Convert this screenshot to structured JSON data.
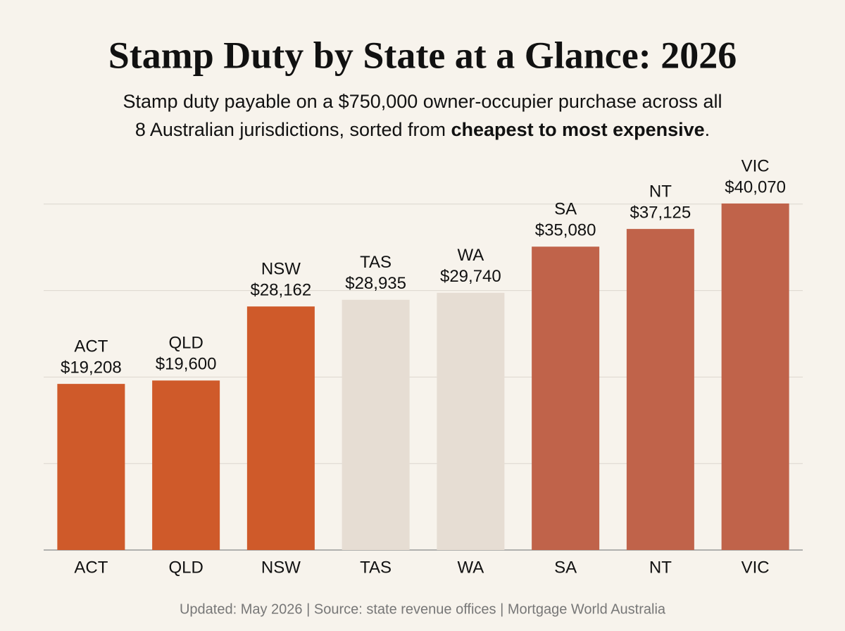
{
  "chart_data": {
    "type": "bar",
    "title": "Stamp Duty by State at a Glance: 2026",
    "subtitle": [
      "Stamp duty payable on a $750,000 owner-occupier purchase across all",
      "8 Australian jurisdictions, sorted from ",
      "cheapest to most expensive",
      "."
    ],
    "categories": [
      "ACT",
      "QLD",
      "NSW",
      "TAS",
      "WA",
      "SA",
      "NT",
      "VIC"
    ],
    "values": [
      19208,
      19600,
      28162,
      28935,
      29740,
      35080,
      37125,
      40070
    ],
    "value_labels": [
      "$19,208",
      "$19,600",
      "$28,162",
      "$28,935",
      "$29,740",
      "$35,080",
      "$37,125",
      "$40,070"
    ],
    "colors": [
      "#cf5a2a",
      "#cf5a2a",
      "#cf5a2a",
      "#e6ddd3",
      "#e6ddd3",
      "#c0634a",
      "#c0634a",
      "#c0634a"
    ],
    "ylim": [
      0,
      45000
    ],
    "yticks": [
      0,
      10000,
      20000,
      30000,
      40000
    ],
    "grid": true,
    "footer": "Updated: May 2026 | Source: state revenue offices | Mortgage World Australia"
  }
}
